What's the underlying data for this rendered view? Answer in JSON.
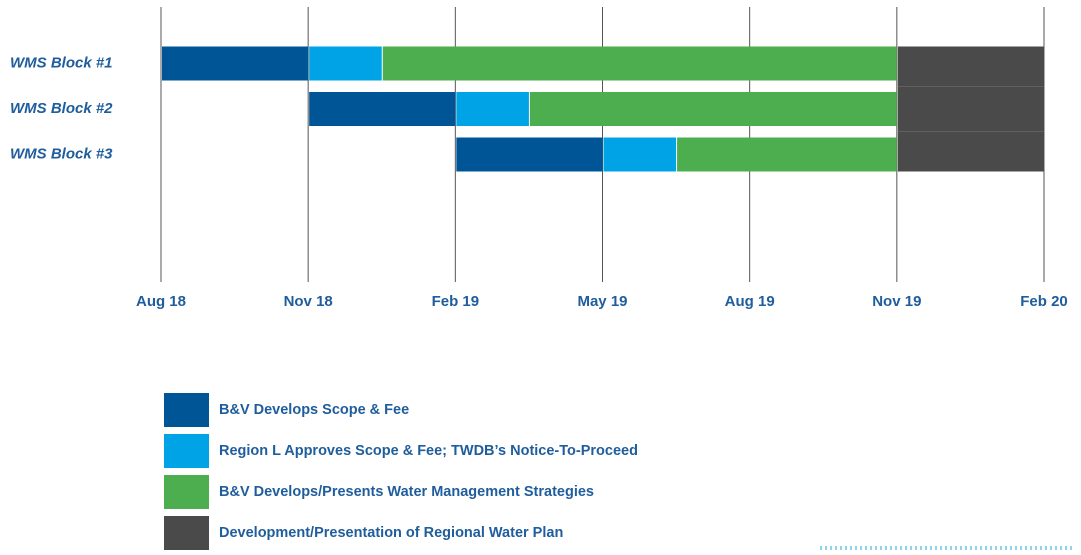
{
  "chart_data": {
    "type": "gantt",
    "categories": [
      "WMS Block #1",
      "WMS Block #2",
      "WMS Block #3"
    ],
    "series": [
      {
        "name": "B&V Develops Scope & Fee",
        "color": "#005596",
        "values": [
          [
            0,
            3
          ],
          [
            3,
            6
          ],
          [
            6,
            9
          ]
        ]
      },
      {
        "name": "Region L Approves Scope & Fee; TWDB’s Notice-To-Proceed",
        "color": "#00a3e6",
        "values": [
          [
            3,
            4.5
          ],
          [
            6,
            7.5
          ],
          [
            9,
            10.5
          ]
        ]
      },
      {
        "name": "B&V Develops/Presents Water Management Strategies",
        "color": "#4cae4f",
        "values": [
          [
            4.5,
            15
          ],
          [
            7.5,
            15
          ],
          [
            10.5,
            15
          ]
        ]
      },
      {
        "name": "Development/Presentation of Regional Water Plan",
        "color": "#4a4a4a",
        "values": [
          [
            15,
            18
          ],
          [
            15,
            18
          ],
          [
            15,
            18
          ]
        ]
      }
    ],
    "xlim": [
      0,
      18
    ],
    "xticks": [
      {
        "value": 0,
        "label": "Aug 18"
      },
      {
        "value": 3,
        "label": "Nov 18"
      },
      {
        "value": 6,
        "label": "Feb 19"
      },
      {
        "value": 9,
        "label": "May 19"
      },
      {
        "value": 12,
        "label": "Aug 19"
      },
      {
        "value": 15,
        "label": "Nov 19"
      },
      {
        "value": 18,
        "label": "Feb 20"
      }
    ],
    "grid": true
  }
}
